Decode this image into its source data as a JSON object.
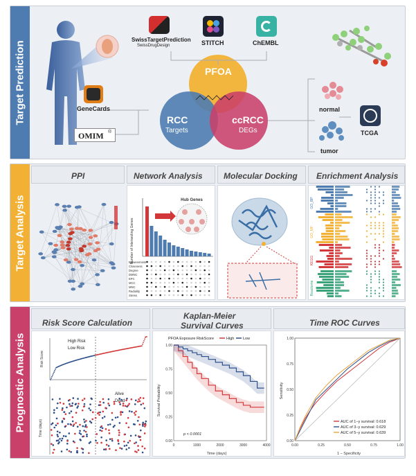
{
  "sections": {
    "target_prediction": "Target Prediction",
    "target_analysis": "Target Analysis",
    "prognostic_analysis": "Prognostic Analysis"
  },
  "colors": {
    "blue": "#4e7cb0",
    "gold": "#f2b134",
    "pink": "#c9406a",
    "red": "#d2383a",
    "navy": "#2d4e8a"
  },
  "target_prediction": {
    "swiss_title": "SwissTargetPrediction",
    "swiss_sub": "SwissDrugDesign",
    "stitch": "STITCH",
    "chembl": "ChEMBL",
    "genecards": "GeneCards",
    "omim": "OMIM",
    "omim_mark": "®",
    "pfoa": "PFOA",
    "rcc": "RCC",
    "rcc_sub": "Targets",
    "ccrcc": "ccRCC",
    "ccrcc_sub": "DEGs",
    "normal": "normal",
    "tumor": "tumor",
    "tcga": "TCGA"
  },
  "target_analysis": {
    "ppi": "PPI",
    "network": "Network Analysis",
    "docking": "Molecular Docking",
    "enrichment": "Enrichment  Analysis",
    "hub_genes": "Hub Genes",
    "y_axis": "Number of Intersecting Genes",
    "metrics": [
      "Betweenness",
      "Closeness",
      "Degree",
      "DMNC",
      "EPC",
      "MCC",
      "MNC",
      "Radiality",
      "Stress"
    ],
    "enrich_labels": [
      "GO_BP",
      "GO_MF",
      "KEGG",
      "Reactome"
    ]
  },
  "prognostic": {
    "risk_title": "Risk Score Calculation",
    "km_title": "Kaplan-Meier\nSurvival Curves",
    "km_title_1": "Kaplan-Meier",
    "km_title_2": "Survival Curves",
    "roc_title": "Time ROC Curves",
    "high_risk": "High Risk",
    "low_risk": "Low Risk",
    "risk_ylabel": "Risk Score",
    "alive": "Alive",
    "dead": "Dead",
    "time_ylabel": "Time (days)",
    "km_legend_title": "PFOA Exposure RiskScore",
    "km_high": "High",
    "km_low": "Low",
    "km_ylabel": "Survival Probability",
    "km_xlabel": "Time (days)",
    "km_p": "p < 0.0001",
    "roc_ylabel": "Sensitivity",
    "roc_xlabel": "1 − Specificity",
    "roc_legend": [
      "AUC of 1−y survival: 0.618",
      "AUC of 3−y survival: 0.629",
      "AUC of 5−y survival: 0.639"
    ]
  },
  "chart_data": [
    {
      "type": "line",
      "title": "Kaplan-Meier Survival Curves",
      "xlabel": "Time (days)",
      "ylabel": "Survival Probability",
      "xlim": [
        0,
        4000
      ],
      "ylim": [
        0,
        1.0
      ],
      "x_ticks": [
        0,
        1000,
        2000,
        3000,
        4000
      ],
      "y_ticks": [
        0.0,
        0.25,
        0.5,
        0.75,
        1.0
      ],
      "series": [
        {
          "name": "High",
          "color": "#d2383a",
          "x": [
            0,
            200,
            400,
            600,
            800,
            1000,
            1200,
            1500,
            1800,
            2100,
            2400,
            2700,
            3000,
            3300,
            3600,
            3900
          ],
          "y": [
            1.0,
            0.94,
            0.88,
            0.82,
            0.76,
            0.7,
            0.65,
            0.58,
            0.52,
            0.48,
            0.44,
            0.4,
            0.37,
            0.35,
            0.35,
            0.35
          ]
        },
        {
          "name": "Low",
          "color": "#2d4e8a",
          "x": [
            0,
            200,
            400,
            600,
            800,
            1000,
            1200,
            1500,
            1800,
            2100,
            2400,
            2700,
            3000,
            3300,
            3600,
            3900
          ],
          "y": [
            1.0,
            0.98,
            0.96,
            0.94,
            0.92,
            0.9,
            0.88,
            0.85,
            0.82,
            0.79,
            0.76,
            0.72,
            0.68,
            0.62,
            0.55,
            0.55
          ]
        }
      ],
      "annotation": "p < 0.0001"
    },
    {
      "type": "line",
      "title": "Time ROC Curves",
      "xlabel": "1 − Specificity",
      "ylabel": "Sensitivity",
      "xlim": [
        0,
        1
      ],
      "ylim": [
        0,
        1
      ],
      "x_ticks": [
        0.0,
        0.25,
        0.5,
        0.75,
        1.0
      ],
      "y_ticks": [
        0.0,
        0.25,
        0.5,
        0.75,
        1.0
      ],
      "series": [
        {
          "name": "AUC of 1−y survival: 0.618",
          "color": "#d2383a",
          "x": [
            0,
            0.05,
            0.1,
            0.15,
            0.2,
            0.3,
            0.4,
            0.5,
            0.6,
            0.7,
            0.8,
            0.9,
            1.0
          ],
          "y": [
            0,
            0.12,
            0.22,
            0.3,
            0.37,
            0.48,
            0.58,
            0.66,
            0.74,
            0.82,
            0.9,
            0.96,
            1.0
          ]
        },
        {
          "name": "AUC of 3−y survival: 0.629",
          "color": "#2d4e8a",
          "x": [
            0,
            0.05,
            0.1,
            0.15,
            0.2,
            0.3,
            0.4,
            0.5,
            0.6,
            0.7,
            0.8,
            0.9,
            1.0
          ],
          "y": [
            0,
            0.1,
            0.2,
            0.3,
            0.4,
            0.5,
            0.6,
            0.7,
            0.78,
            0.86,
            0.92,
            0.97,
            1.0
          ]
        },
        {
          "name": "AUC of 5−y survival: 0.639",
          "color": "#e8a33d",
          "x": [
            0,
            0.05,
            0.1,
            0.15,
            0.2,
            0.3,
            0.4,
            0.5,
            0.6,
            0.7,
            0.8,
            0.9,
            1.0
          ],
          "y": [
            0,
            0.13,
            0.24,
            0.33,
            0.42,
            0.54,
            0.64,
            0.72,
            0.8,
            0.88,
            0.93,
            0.98,
            1.0
          ]
        }
      ]
    }
  ]
}
